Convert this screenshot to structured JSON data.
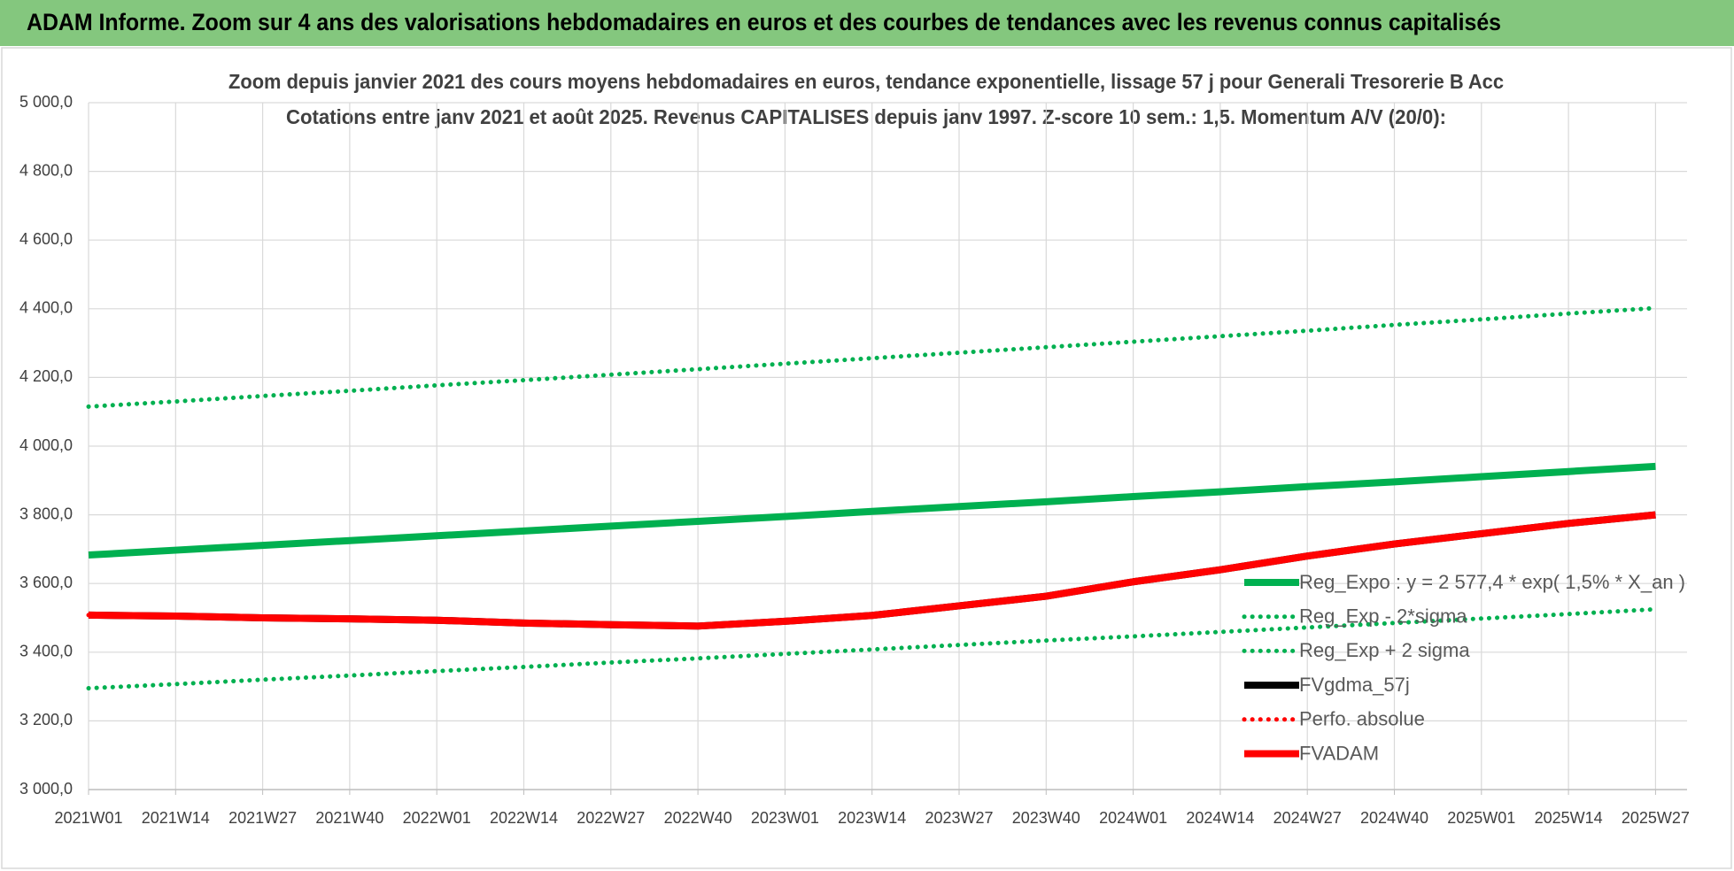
{
  "header": {
    "title": "ADAM Informe. Zoom sur 4 ans des valorisations hebdomadaires en euros et des courbes de tendances avec les revenus connus capitalisés"
  },
  "chart_data": {
    "type": "line",
    "title": "Zoom depuis janvier 2021 des cours moyens hebdomadaires en euros, tendance exponentielle, lissage 57 j pour Generali Tresorerie B Acc",
    "subtitle": "Cotations entre janv 2021 et août 2025. Revenus CAPITALISES depuis janv 1997. Z-score 10 sem.: 1,5. Momentum A/V (20/0):",
    "categories": [
      "2021W01",
      "2021W14",
      "2021W27",
      "2021W40",
      "2022W01",
      "2022W14",
      "2022W27",
      "2022W40",
      "2023W01",
      "2023W14",
      "2023W27",
      "2023W40",
      "2024W01",
      "2024W14",
      "2024W27",
      "2024W40",
      "2025W01",
      "2025W14",
      "2025W27"
    ],
    "ylim": [
      3000,
      5000
    ],
    "yticks": [
      {
        "value": 3000,
        "label": "3 000,0"
      },
      {
        "value": 3200,
        "label": "3 200,0"
      },
      {
        "value": 3400,
        "label": "3 400,0"
      },
      {
        "value": 3600,
        "label": "3 600,0"
      },
      {
        "value": 3800,
        "label": "3 800,0"
      },
      {
        "value": 4000,
        "label": "4 000,0"
      },
      {
        "value": 4200,
        "label": "4 200,0"
      },
      {
        "value": 4400,
        "label": "4 400,0"
      },
      {
        "value": 4600,
        "label": "4 600,0"
      },
      {
        "value": 4800,
        "label": "4 800,0"
      },
      {
        "value": 5000,
        "label": "5 000,0"
      }
    ],
    "grid": true,
    "legend": "right",
    "series": [
      {
        "name": "Reg_Expo : y = 2 577,4 * exp( 1,5% *  X_an )",
        "color": "#00b050",
        "dash": "solid",
        "values": [
          3683,
          3697,
          3711,
          3725,
          3739,
          3753,
          3767,
          3781,
          3795,
          3810,
          3824,
          3838,
          3853,
          3867,
          3882,
          3896,
          3911,
          3926,
          3941
        ]
      },
      {
        "name": "Reg_Exp - 2*sigma",
        "color": "#00b050",
        "dash": "dotted",
        "values": [
          3295,
          3307,
          3320,
          3332,
          3345,
          3357,
          3370,
          3382,
          3395,
          3408,
          3421,
          3434,
          3446,
          3459,
          3472,
          3485,
          3498,
          3511,
          3525
        ]
      },
      {
        "name": "Reg_Exp + 2 sigma",
        "color": "#00b050",
        "dash": "dotted",
        "values": [
          4115,
          4130,
          4146,
          4161,
          4177,
          4192,
          4208,
          4224,
          4240,
          4256,
          4272,
          4288,
          4304,
          4320,
          4336,
          4353,
          4369,
          4386,
          4402
        ]
      },
      {
        "name": "FVgdma_57j",
        "color": "#000000",
        "dash": "solid",
        "values": [
          3508,
          3505,
          3500,
          3497,
          3493,
          3485,
          3480,
          3476,
          3490,
          3507,
          3535,
          3563,
          3605,
          3640,
          3680,
          3715,
          3745,
          3775,
          3800
        ]
      },
      {
        "name": "Perfo. absolue",
        "color": "#ff0000",
        "dash": "dotted",
        "values": [
          3508,
          3505,
          3500,
          3497,
          3493,
          3485,
          3480,
          3476,
          3490,
          3507,
          3535,
          3563,
          3605,
          3640,
          3680,
          3715,
          3745,
          3775,
          3800
        ]
      },
      {
        "name": "FVADAM",
        "color": "#ff0000",
        "dash": "solid",
        "values": [
          3508,
          3505,
          3500,
          3497,
          3493,
          3485,
          3480,
          3476,
          3490,
          3507,
          3535,
          3563,
          3605,
          3640,
          3680,
          3715,
          3745,
          3775,
          3800
        ]
      }
    ]
  }
}
